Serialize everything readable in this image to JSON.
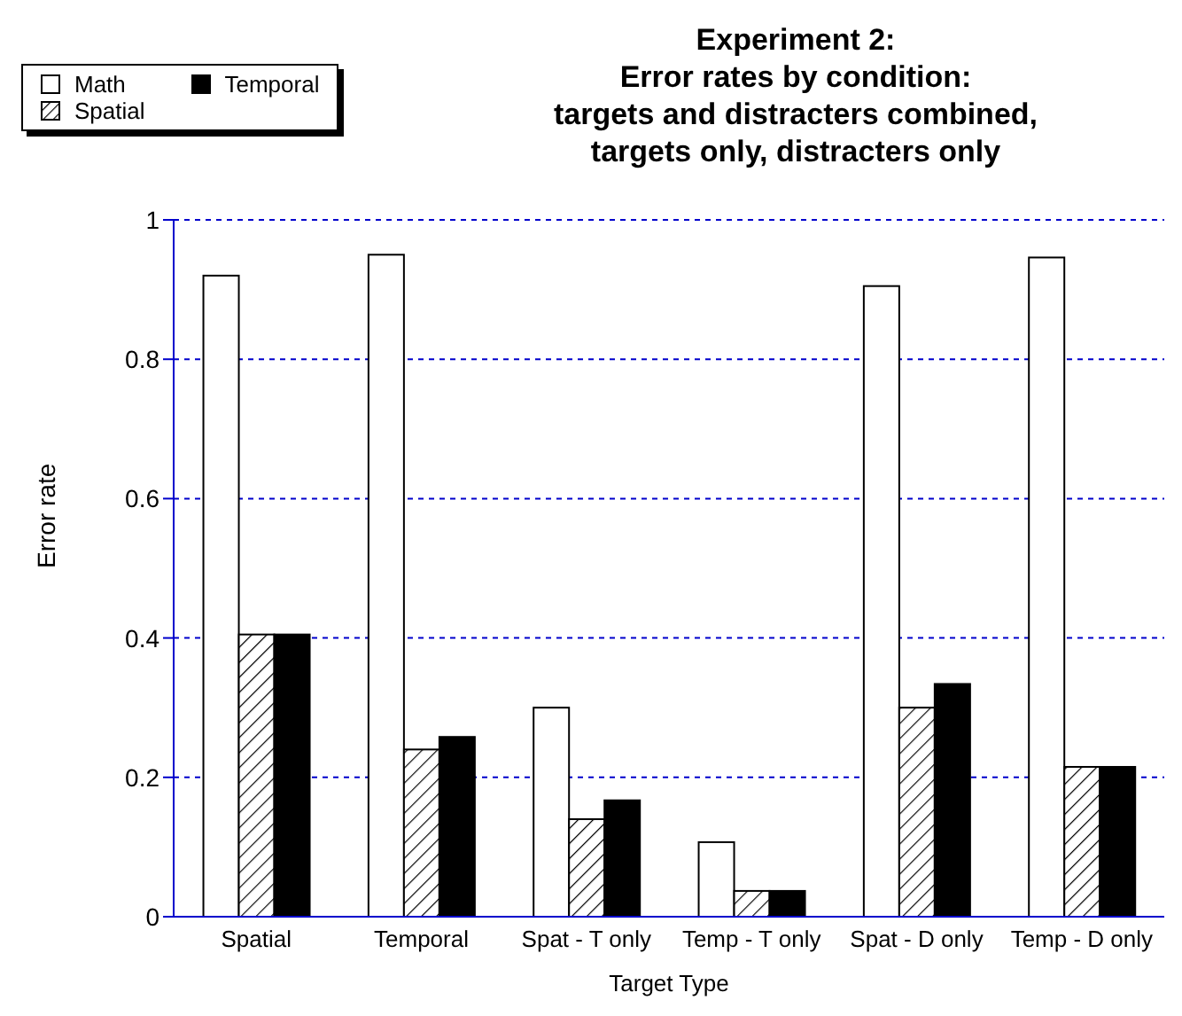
{
  "chart_data": {
    "type": "bar",
    "title": "Experiment 2:\nError rates by condition:\ntargets and distracters combined,\ntargets only, distracters only",
    "xlabel": "Target Type",
    "ylabel": "Error rate",
    "categories": [
      "Spatial",
      "Temporal",
      "Spat - T only",
      "Temp - T only",
      "Spat - D only",
      "Temp - D only"
    ],
    "series": [
      {
        "name": "Math",
        "color": "#ffffff",
        "values": [
          0.92,
          0.95,
          0.3,
          0.107,
          0.905,
          0.946
        ]
      },
      {
        "name": "Spatial",
        "color": "#ffffff",
        "values": [
          0.405,
          0.24,
          0.14,
          0.037,
          0.3,
          0.215
        ]
      },
      {
        "name": "Temporal",
        "color": "#000000",
        "values": [
          0.405,
          0.258,
          0.167,
          0.037,
          0.334,
          0.215
        ]
      }
    ],
    "ylim": [
      0,
      1
    ],
    "yticks": [
      0,
      0.2,
      0.4,
      0.6,
      0.8,
      1
    ],
    "grid": "y",
    "legend": "top left"
  }
}
